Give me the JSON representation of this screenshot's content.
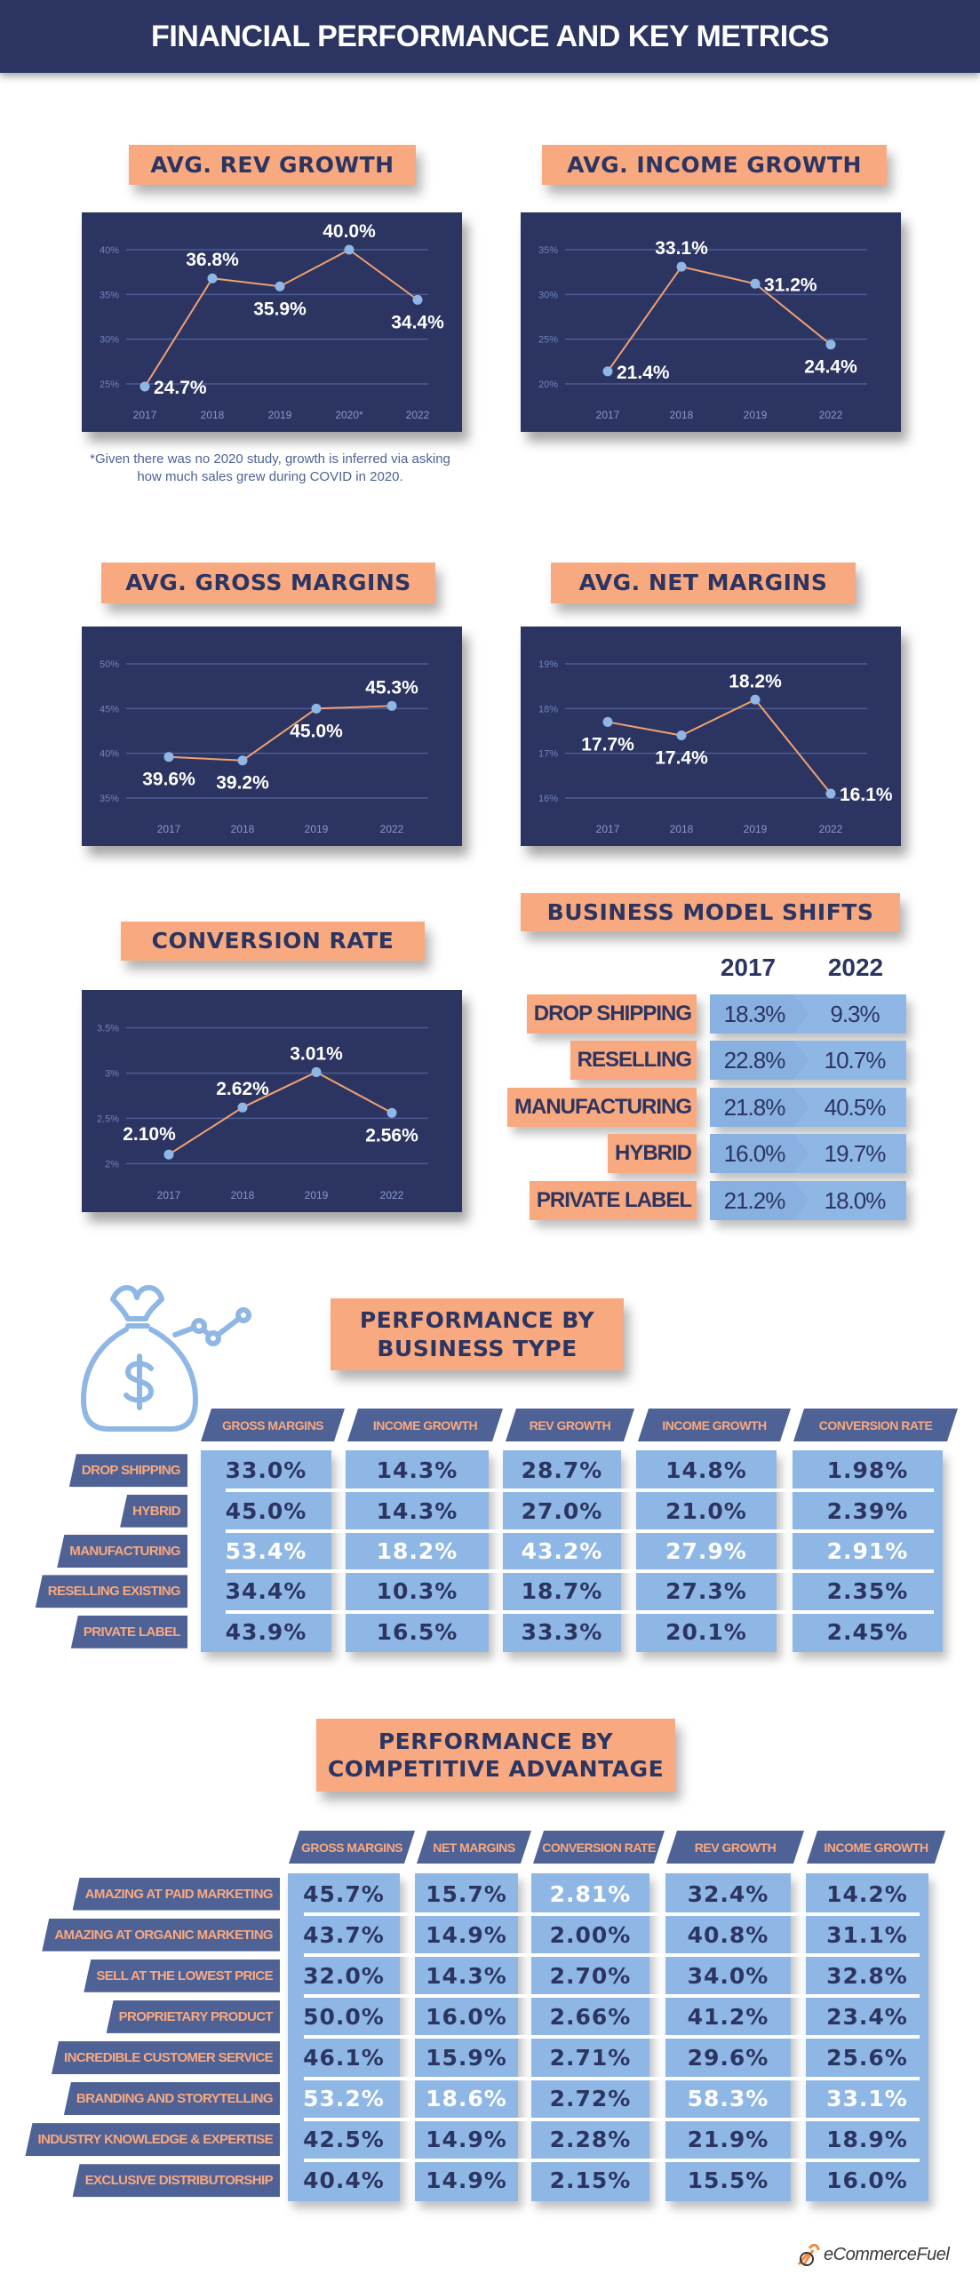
{
  "header": {
    "title": "FINANCIAL PERFORMANCE AND KEY METRICS"
  },
  "colors": {
    "navy": "#2c3561",
    "peach": "#f9a97f",
    "light_blue": "#8fb7e6",
    "slate": "#4e6296",
    "line": "#f0a070"
  },
  "chart_data": [
    {
      "type": "line",
      "title": "AVG. REV GROWTH",
      "categories": [
        "2017",
        "2018",
        "2019",
        "2020*",
        "2022"
      ],
      "values": [
        24.7,
        36.8,
        35.9,
        40.0,
        34.4
      ],
      "data_labels": [
        "24.7%",
        "36.8%",
        "35.9%",
        "40.0%",
        "34.4%"
      ],
      "ylim": [
        25,
        40
      ],
      "yticks": [
        "25%",
        "30%",
        "35%",
        "40%"
      ],
      "grid": true,
      "footnote": "*Given there was no 2020 study, growth is inferred via asking how much sales grew during COVID in 2020."
    },
    {
      "type": "line",
      "title": "AVG. INCOME GROWTH",
      "categories": [
        "2017",
        "2018",
        "2019",
        "2022"
      ],
      "values": [
        21.4,
        33.1,
        31.2,
        24.4
      ],
      "data_labels": [
        "21.4%",
        "33.1%",
        "31.2%",
        "24.4%"
      ],
      "ylim": [
        20,
        35
      ],
      "yticks": [
        "20%",
        "25%",
        "30%",
        "35%"
      ],
      "grid": true
    },
    {
      "type": "line",
      "title": "AVG. GROSS MARGINS",
      "categories": [
        "2017",
        "2018",
        "2019",
        "2022"
      ],
      "values": [
        39.6,
        39.2,
        45.0,
        45.3
      ],
      "data_labels": [
        "39.6%",
        "39.2%",
        "45.0%",
        "45.3%"
      ],
      "ylim": [
        35,
        50
      ],
      "yticks": [
        "35%",
        "40%",
        "45%",
        "50%"
      ],
      "grid": true
    },
    {
      "type": "line",
      "title": "AVG. NET MARGINS",
      "categories": [
        "2017",
        "2018",
        "2019",
        "2022"
      ],
      "values": [
        17.7,
        17.4,
        18.2,
        16.1
      ],
      "data_labels": [
        "17.7%",
        "17.4%",
        "18.2%",
        "16.1%"
      ],
      "ylim": [
        16,
        19
      ],
      "yticks": [
        "16%",
        "17%",
        "18%",
        "19%"
      ],
      "grid": true
    },
    {
      "type": "line",
      "title": "CONVERSION RATE",
      "categories": [
        "2017",
        "2018",
        "2019",
        "2022"
      ],
      "values": [
        2.1,
        2.62,
        3.01,
        2.56
      ],
      "data_labels": [
        "2.10%",
        "2.62%",
        "3.01%",
        "2.56%"
      ],
      "ylim": [
        2,
        3.5
      ],
      "yticks": [
        "2%",
        "2.5%",
        "3%",
        "3.5%"
      ],
      "grid": true
    }
  ],
  "business_model_shifts": {
    "title": "BUSINESS MODEL SHIFTS",
    "years": [
      "2017",
      "2022"
    ],
    "rows": [
      {
        "label": "DROP SHIPPING",
        "values": [
          "18.3%",
          "9.3%"
        ]
      },
      {
        "label": "RESELLING",
        "values": [
          "22.8%",
          "10.7%"
        ]
      },
      {
        "label": "MANUFACTURING",
        "values": [
          "21.8%",
          "40.5%"
        ]
      },
      {
        "label": "HYBRID",
        "values": [
          "16.0%",
          "19.7%"
        ]
      },
      {
        "label": "PRIVATE LABEL",
        "values": [
          "21.2%",
          "18.0%"
        ]
      }
    ]
  },
  "performance_by_business_type": {
    "title_line1": "PERFORMANCE BY",
    "title_line2": "BUSINESS TYPE",
    "icon": "money-bag-growth-icon",
    "columns": [
      "GROSS MARGINS",
      "INCOME GROWTH",
      "REV GROWTH",
      "INCOME GROWTH",
      "CONVERSION RATE"
    ],
    "rows": [
      {
        "label": "DROP SHIPPING",
        "values": [
          "33.0%",
          "14.3%",
          "28.7%",
          "14.8%",
          "1.98%"
        ],
        "highlight": [
          false,
          false,
          false,
          false,
          false
        ]
      },
      {
        "label": "HYBRID",
        "values": [
          "45.0%",
          "14.3%",
          "27.0%",
          "21.0%",
          "2.39%"
        ],
        "highlight": [
          false,
          false,
          false,
          false,
          false
        ]
      },
      {
        "label": "MANUFACTURING",
        "values": [
          "53.4%",
          "18.2%",
          "43.2%",
          "27.9%",
          "2.91%"
        ],
        "highlight": [
          true,
          true,
          true,
          true,
          true
        ]
      },
      {
        "label": "RESELLING EXISTING",
        "values": [
          "34.4%",
          "10.3%",
          "18.7%",
          "27.3%",
          "2.35%"
        ],
        "highlight": [
          false,
          false,
          false,
          false,
          false
        ]
      },
      {
        "label": "PRIVATE LABEL",
        "values": [
          "43.9%",
          "16.5%",
          "33.3%",
          "20.1%",
          "2.45%"
        ],
        "highlight": [
          false,
          false,
          false,
          false,
          false
        ]
      }
    ]
  },
  "performance_by_competitive_advantage": {
    "title_line1": "PERFORMANCE BY",
    "title_line2": "COMPETITIVE ADVANTAGE",
    "columns": [
      "GROSS MARGINS",
      "NET MARGINS",
      "CONVERSION RATE",
      "REV GROWTH",
      "INCOME GROWTH"
    ],
    "rows": [
      {
        "label": "AMAZING AT PAID MARKETING",
        "values": [
          "45.7%",
          "15.7%",
          "2.81%",
          "32.4%",
          "14.2%"
        ],
        "highlight": [
          false,
          false,
          true,
          false,
          false
        ]
      },
      {
        "label": "AMAZING AT ORGANIC MARKETING",
        "values": [
          "43.7%",
          "14.9%",
          "2.00%",
          "40.8%",
          "31.1%"
        ],
        "highlight": [
          false,
          false,
          false,
          false,
          false
        ]
      },
      {
        "label": "SELL AT THE LOWEST PRICE",
        "values": [
          "32.0%",
          "14.3%",
          "2.70%",
          "34.0%",
          "32.8%"
        ],
        "highlight": [
          false,
          false,
          false,
          false,
          false
        ]
      },
      {
        "label": "PROPRIETARY PRODUCT",
        "values": [
          "50.0%",
          "16.0%",
          "2.66%",
          "41.2%",
          "23.4%"
        ],
        "highlight": [
          false,
          false,
          false,
          false,
          false
        ]
      },
      {
        "label": "INCREDIBLE CUSTOMER SERVICE",
        "values": [
          "46.1%",
          "15.9%",
          "2.71%",
          "29.6%",
          "25.6%"
        ],
        "highlight": [
          false,
          false,
          false,
          false,
          false
        ]
      },
      {
        "label": "BRANDING AND STORYTELLING",
        "values": [
          "53.2%",
          "18.6%",
          "2.72%",
          "58.3%",
          "33.1%"
        ],
        "highlight": [
          true,
          true,
          false,
          true,
          true
        ]
      },
      {
        "label": "INDUSTRY KNOWLEDGE & EXPERTISE",
        "values": [
          "42.5%",
          "14.9%",
          "2.28%",
          "21.9%",
          "18.9%"
        ],
        "highlight": [
          false,
          false,
          false,
          false,
          false
        ]
      },
      {
        "label": "EXCLUSIVE DISTRIBUTORSHIP",
        "values": [
          "40.4%",
          "14.9%",
          "2.15%",
          "15.5%",
          "16.0%"
        ],
        "highlight": [
          false,
          false,
          false,
          false,
          false
        ]
      }
    ]
  },
  "logo": {
    "text": "eCommerceFuel"
  }
}
